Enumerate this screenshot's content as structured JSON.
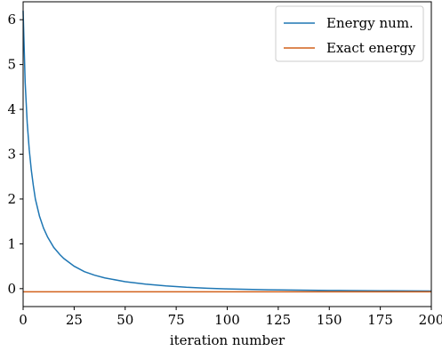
{
  "chart_data": {
    "type": "line",
    "title": "",
    "xlabel": "iteration number",
    "ylabel": "",
    "xlim": [
      0,
      200
    ],
    "ylim": [
      -0.4,
      6.4
    ],
    "xticks": [
      0,
      25,
      50,
      75,
      100,
      125,
      150,
      175,
      200
    ],
    "yticks": [
      0,
      1,
      2,
      3,
      4,
      5,
      6
    ],
    "grid": false,
    "legend_position": "top-right",
    "series": [
      {
        "name": "Energy num.",
        "color": "#1f77b4",
        "x": [
          0,
          1,
          2,
          3,
          4,
          5,
          6,
          8,
          10,
          12,
          15,
          18,
          20,
          25,
          30,
          35,
          40,
          50,
          60,
          70,
          75,
          80,
          90,
          100,
          110,
          120,
          125,
          140,
          150,
          160,
          175,
          180,
          190,
          200
        ],
        "y": [
          6.2,
          4.6,
          3.7,
          3.1,
          2.65,
          2.3,
          2.0,
          1.62,
          1.35,
          1.15,
          0.92,
          0.76,
          0.67,
          0.5,
          0.38,
          0.3,
          0.24,
          0.155,
          0.1,
          0.06,
          0.045,
          0.03,
          0.01,
          -0.005,
          -0.015,
          -0.025,
          -0.028,
          -0.035,
          -0.04,
          -0.043,
          -0.047,
          -0.048,
          -0.05,
          -0.052
        ]
      },
      {
        "name": "Exact energy",
        "color": "#d2601a",
        "x": [
          0,
          200
        ],
        "y": [
          -0.07,
          -0.07
        ]
      }
    ]
  }
}
